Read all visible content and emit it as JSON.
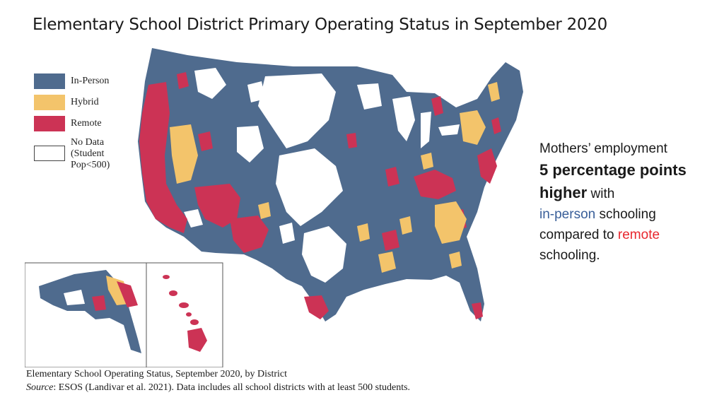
{
  "title": "Elementary School District Primary Operating Status in September 2020",
  "legend": {
    "items": [
      {
        "label": "In-Person",
        "color": "#4f6b8e"
      },
      {
        "label": "Hybrid",
        "color": "#f3c46b"
      },
      {
        "label": "Remote",
        "color": "#cc3355"
      },
      {
        "label": "No Data (Student Pop<500)",
        "color": "#ffffff"
      }
    ]
  },
  "callout": {
    "line1": "Mothers’ employment",
    "emphasis": "5 percentage points higher",
    "with_word": "with",
    "in_person": "in-person",
    "schooling_word": "schooling",
    "compared": "compared to",
    "remote": "remote",
    "tail": "schooling.",
    "in_person_color": "#3a5f99",
    "remote_color": "#e8262d"
  },
  "caption": {
    "line1": "Elementary School Operating Status, September 2020, by District",
    "source_label": "Source",
    "source_text": ": ESOS (Landivar et al. 2021). Data includes all school districts with at least 500 students."
  }
}
